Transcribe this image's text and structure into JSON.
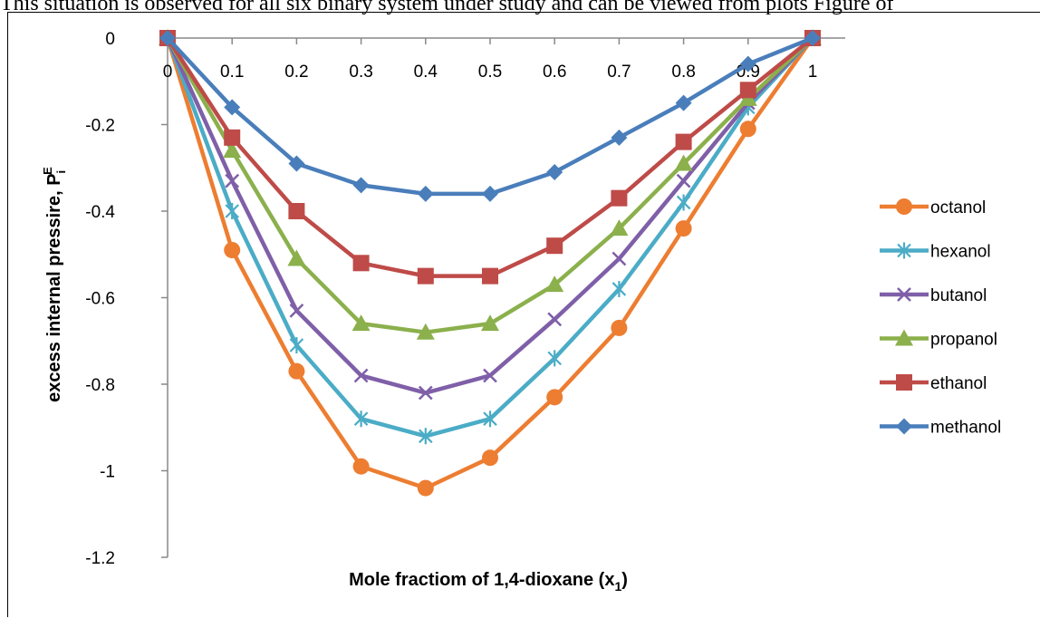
{
  "header": {
    "text": "This situation is observed for all six binary system under study and can be viewed from plots Figure of"
  },
  "chart_data": {
    "type": "line",
    "title": "",
    "xlabel": "Mole fractiom of 1,4-dioxane (x",
    "xlabel_sub": "1",
    "xlabel_end": ")",
    "ylabel": "excess internal pressire, P",
    "ylabel_sub": "i",
    "ylabel_sup": "E",
    "x": [
      0,
      0.1,
      0.2,
      0.3,
      0.4,
      0.5,
      0.6,
      0.7,
      0.8,
      0.9,
      1
    ],
    "x_tick_labels": [
      "0",
      "0.1",
      "0.2",
      "0.3",
      "0.4",
      "0.5",
      "0.6",
      "0.7",
      "0.8",
      "0.9",
      "1"
    ],
    "y_ticks": [
      0,
      -0.2,
      -0.4,
      -0.6,
      -0.8,
      -1,
      -1.2
    ],
    "y_tick_labels": [
      "0",
      "-0.2",
      "-0.4",
      "-0.6",
      "-0.8",
      "-1",
      "-1.2"
    ],
    "xlim": [
      0,
      1
    ],
    "ylim": [
      -1.2,
      0
    ],
    "grid": false,
    "legend_position": "right",
    "series": [
      {
        "name": "octanol",
        "color": "#ED7D31",
        "marker": "circle",
        "values": [
          0,
          -0.49,
          -0.77,
          -0.99,
          -1.04,
          -0.97,
          -0.83,
          -0.67,
          -0.44,
          -0.21,
          0
        ]
      },
      {
        "name": "hexanol",
        "color": "#4BACC6",
        "marker": "star",
        "values": [
          0,
          -0.4,
          -0.71,
          -0.88,
          -0.92,
          -0.88,
          -0.74,
          -0.58,
          -0.38,
          -0.16,
          0
        ]
      },
      {
        "name": "butanol",
        "color": "#7F5FA8",
        "marker": "x",
        "values": [
          0,
          -0.33,
          -0.63,
          -0.78,
          -0.82,
          -0.78,
          -0.65,
          -0.51,
          -0.33,
          -0.15,
          0
        ]
      },
      {
        "name": "propanol",
        "color": "#8BB04C",
        "marker": "triangle",
        "values": [
          0,
          -0.26,
          -0.51,
          -0.66,
          -0.68,
          -0.66,
          -0.57,
          -0.44,
          -0.29,
          -0.14,
          0
        ]
      },
      {
        "name": "ethanol",
        "color": "#BE4B48",
        "marker": "square",
        "values": [
          0,
          -0.23,
          -0.4,
          -0.52,
          -0.55,
          -0.55,
          -0.48,
          -0.37,
          -0.24,
          -0.12,
          0
        ]
      },
      {
        "name": "methanol",
        "color": "#4A7EBB",
        "marker": "diamond",
        "values": [
          0,
          -0.16,
          -0.29,
          -0.34,
          -0.36,
          -0.36,
          -0.31,
          -0.23,
          -0.15,
          -0.06,
          0
        ]
      }
    ]
  }
}
